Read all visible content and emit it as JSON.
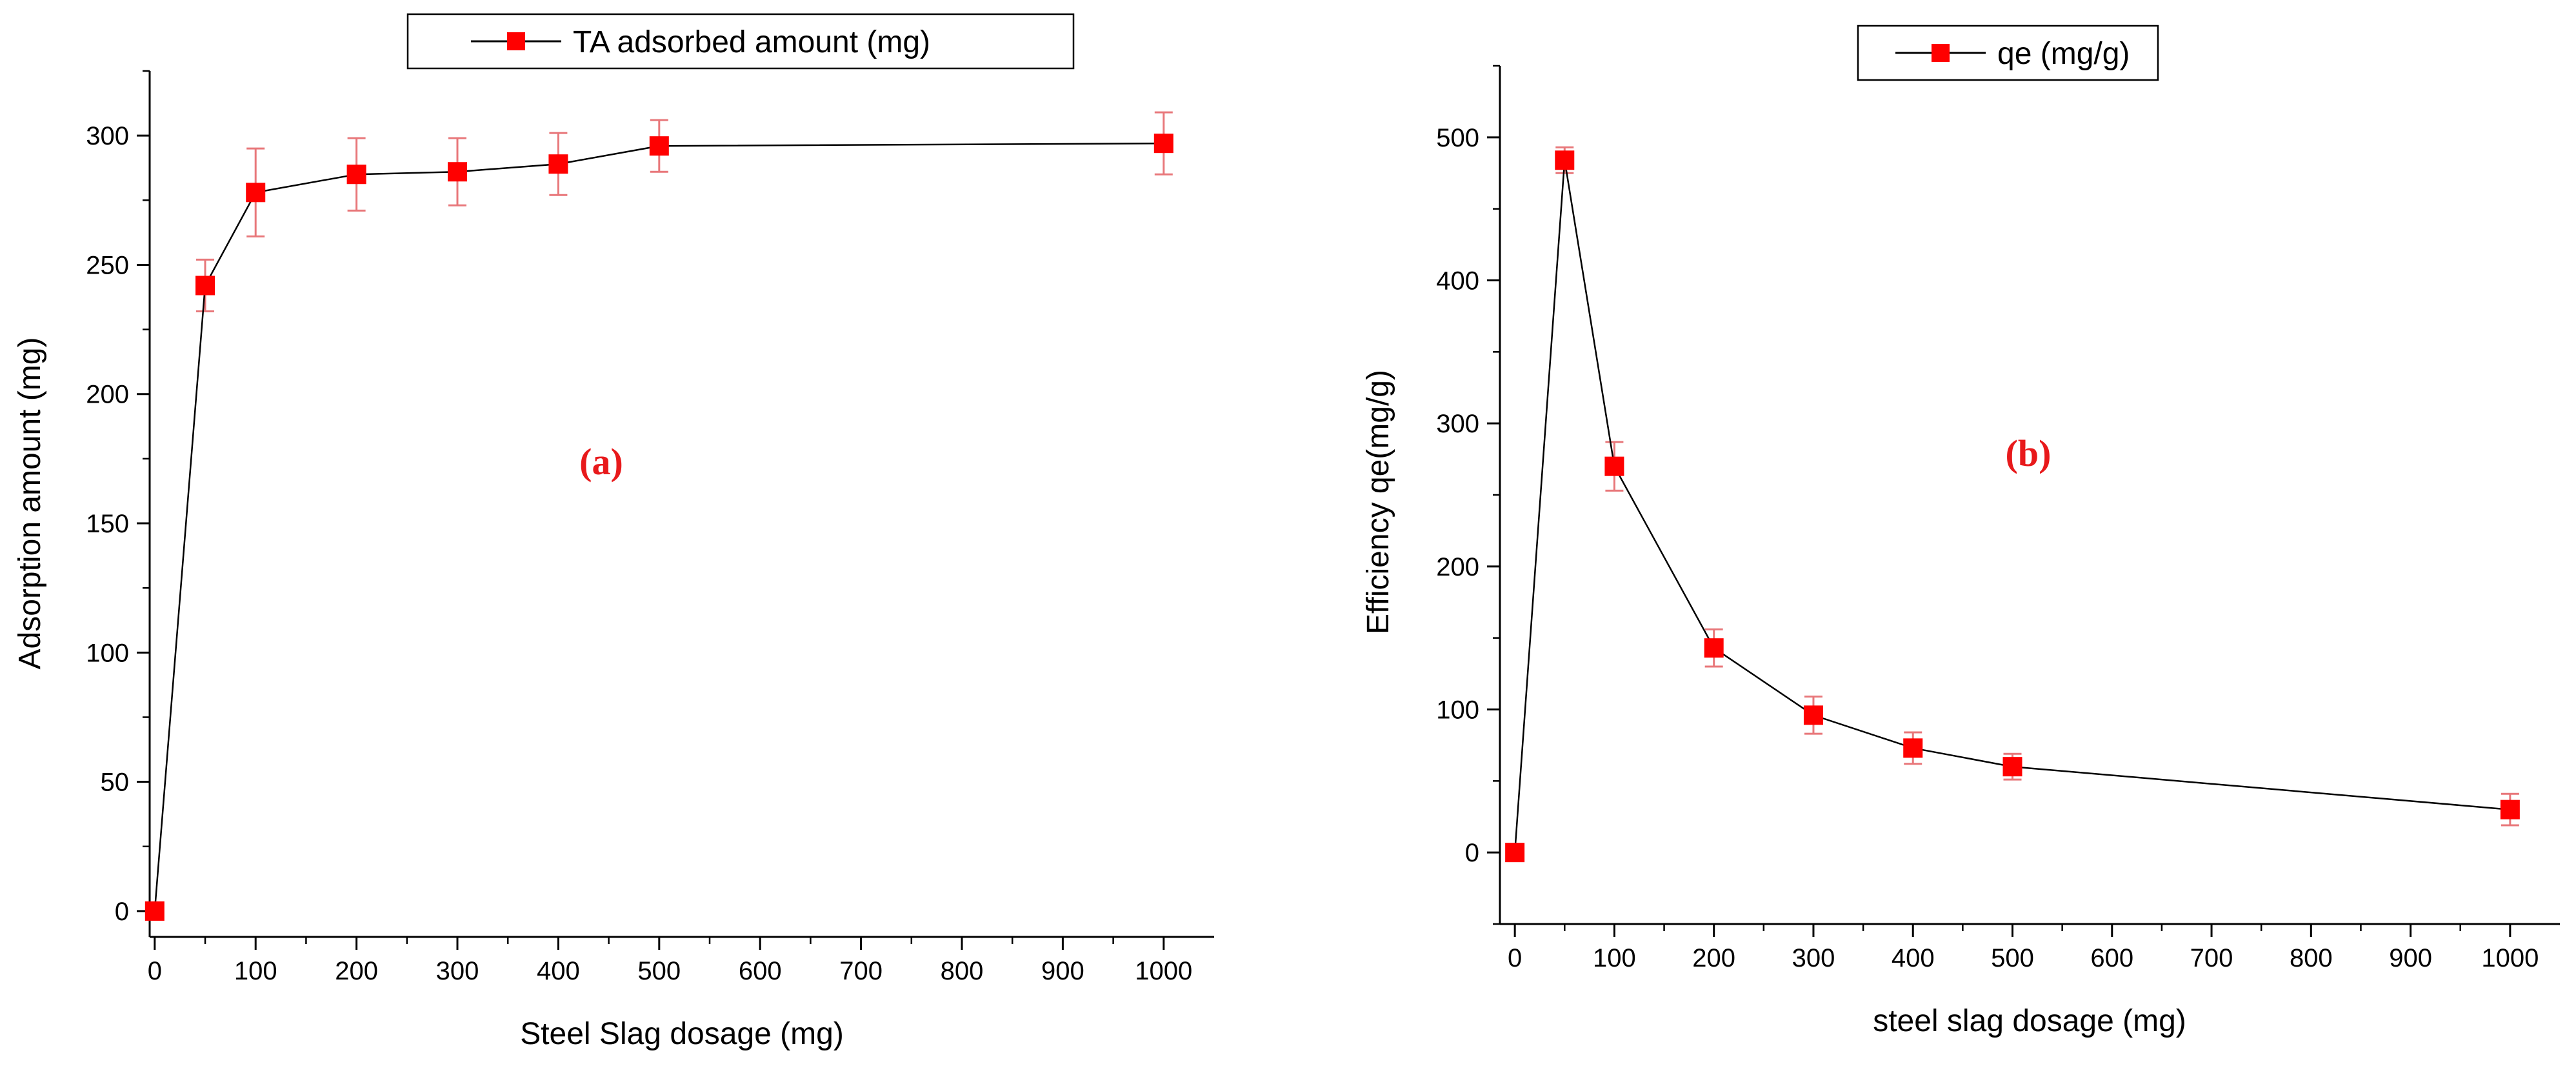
{
  "colors": {
    "marker": "#ff0000",
    "error_bar": "#e8777a",
    "line": "#000000",
    "panel_tag": "#e8191b"
  },
  "chart_data": [
    {
      "type": "line",
      "panel_label": "(a)",
      "xlabel": "Steel Slag dosage (mg)",
      "ylabel": "Adsorption amount (mg)",
      "xlim": [
        -5,
        1050
      ],
      "ylim": [
        -10,
        325
      ],
      "xticks": [
        0,
        100,
        200,
        300,
        400,
        500,
        600,
        700,
        800,
        900,
        1000
      ],
      "yticks": [
        0,
        50,
        100,
        150,
        200,
        250,
        300
      ],
      "legend_position": "top-center",
      "series": [
        {
          "name": "TA adsorbed amount (mg)",
          "x": [
            0,
            50,
            100,
            200,
            300,
            400,
            500,
            1000
          ],
          "y": [
            0,
            242,
            278,
            285,
            286,
            289,
            296,
            297
          ],
          "error": [
            0,
            10,
            17,
            14,
            13,
            12,
            10,
            12
          ]
        }
      ]
    },
    {
      "type": "line",
      "panel_label": "(b)",
      "xlabel": "steel slag dosage (mg)",
      "ylabel": "Efficiency qe(mg/g)",
      "xlim": [
        -15,
        1050
      ],
      "ylim": [
        -50,
        550
      ],
      "xticks": [
        0,
        100,
        200,
        300,
        400,
        500,
        600,
        700,
        800,
        900,
        1000
      ],
      "yticks": [
        0,
        100,
        200,
        300,
        400,
        500
      ],
      "legend_position": "top-center",
      "series": [
        {
          "name": "qe (mg/g)",
          "x": [
            0,
            50,
            100,
            200,
            300,
            400,
            500,
            1000
          ],
          "y": [
            0,
            484,
            270,
            143,
            96,
            73,
            60,
            30
          ],
          "error": [
            0,
            9,
            17,
            13,
            13,
            11,
            9,
            11
          ]
        }
      ]
    }
  ]
}
